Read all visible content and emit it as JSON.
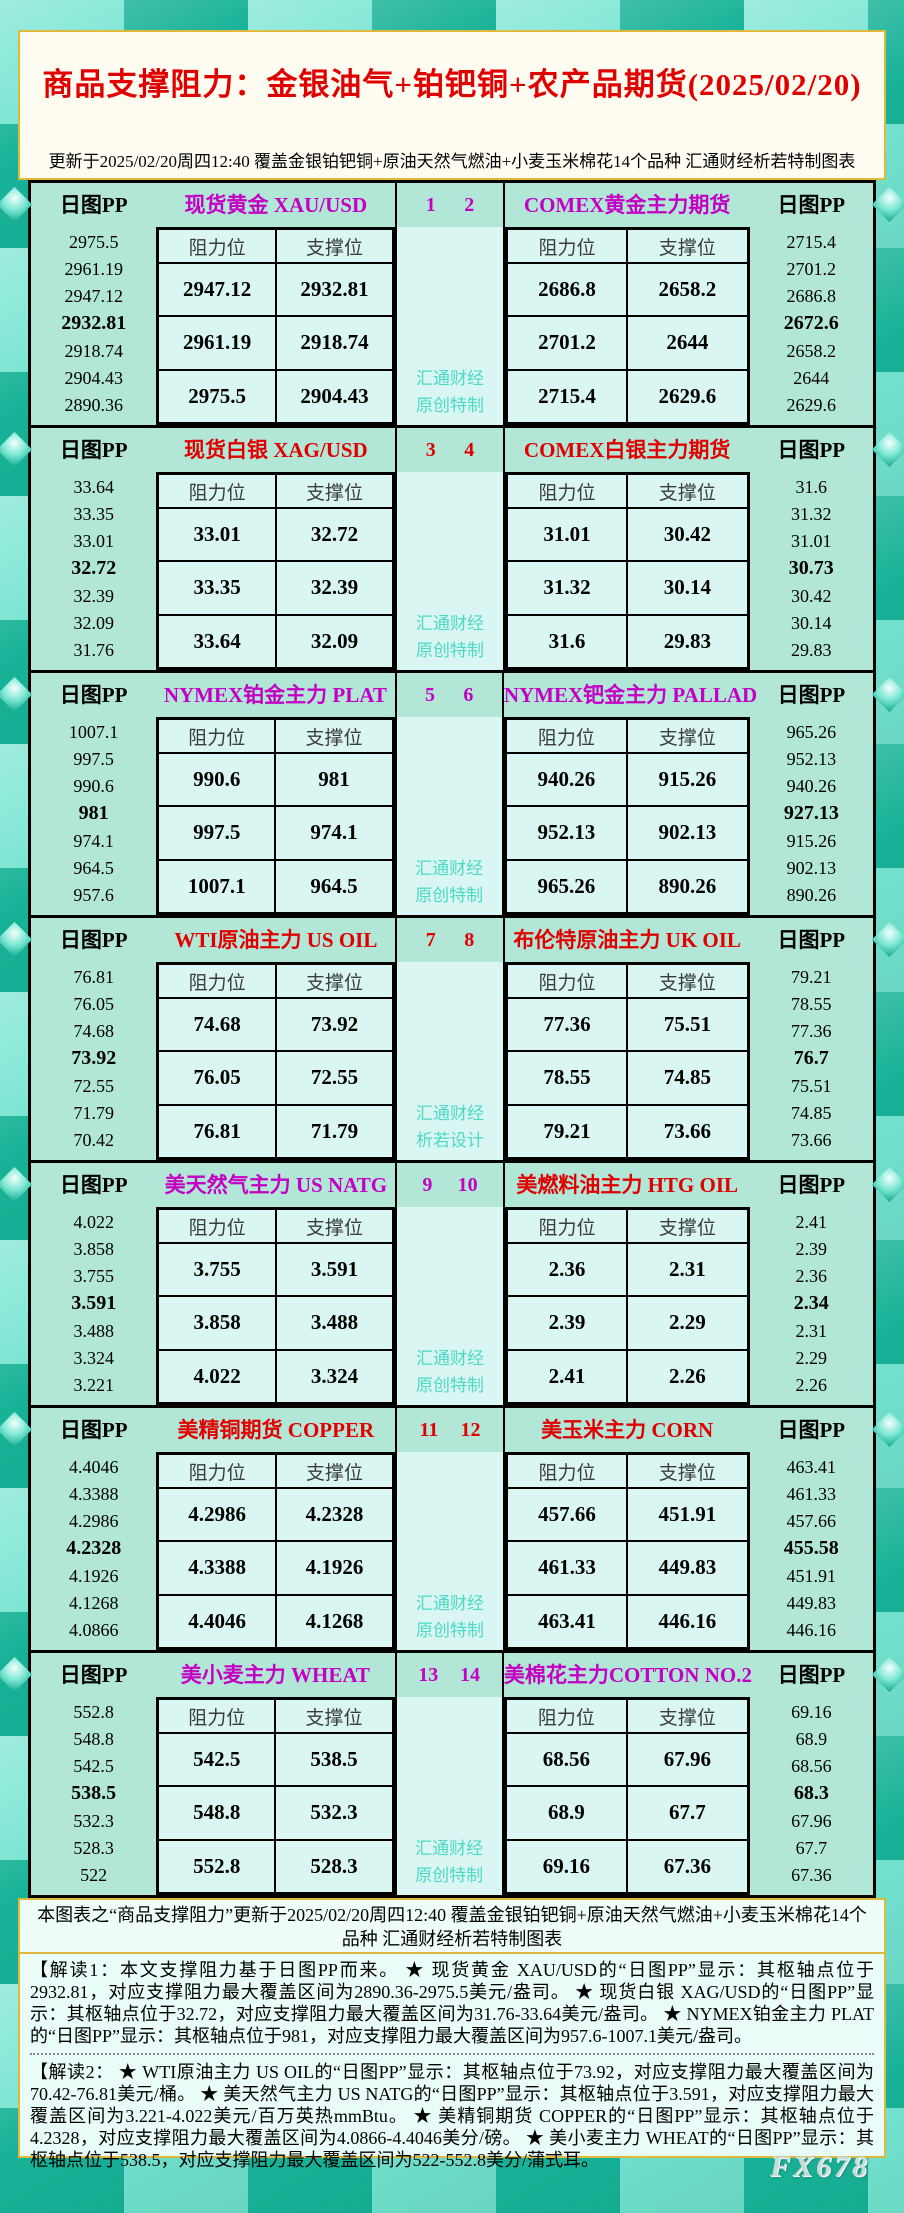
{
  "header": {
    "title": "商品支撑阻力：金银油气+铂钯铜+农产品期货(2025/02/20)",
    "update": "更新于2025/02/20周四12:40  覆盖金银铂钯铜+原油天然气燃油+小麦玉米棉花14个品种  汇通财经析若特制图表"
  },
  "labels": {
    "pp": "日图PP",
    "resistance": "阻力位",
    "support": "支撑位"
  },
  "colors": {
    "magenta": "#c400c4",
    "red": "#e00000",
    "watermark_teal": "#4cd9c5"
  },
  "blocks": [
    {
      "num_left": "1",
      "num_right": "2",
      "num_style": "color:#c400c4",
      "watermark_line1": "汇通财经",
      "watermark_line2": "原创特制",
      "left": {
        "title": "现货黄金 XAU/USD",
        "title_style": "color:#c400c4",
        "pp": [
          "2975.5",
          "2961.19",
          "2947.12",
          "2932.81",
          "2918.74",
          "2904.43",
          "2890.36"
        ],
        "rows": [
          [
            "2947.12",
            "2932.81"
          ],
          [
            "2961.19",
            "2918.74"
          ],
          [
            "2975.5",
            "2904.43"
          ]
        ]
      },
      "right": {
        "title": "COMEX黄金主力期货",
        "title_style": "color:#c400c4",
        "pp": [
          "2715.4",
          "2701.2",
          "2686.8",
          "2672.6",
          "2658.2",
          "2644",
          "2629.6"
        ],
        "rows": [
          [
            "2686.8",
            "2658.2"
          ],
          [
            "2701.2",
            "2644"
          ],
          [
            "2715.4",
            "2629.6"
          ]
        ]
      }
    },
    {
      "num_left": "3",
      "num_right": "4",
      "num_style": "color:#e00000",
      "watermark_line1": "汇通财经",
      "watermark_line2": "原创特制",
      "left": {
        "title": "现货白银 XAG/USD",
        "title_style": "color:#e00000",
        "pp": [
          "33.64",
          "33.35",
          "33.01",
          "32.72",
          "32.39",
          "32.09",
          "31.76"
        ],
        "rows": [
          [
            "33.01",
            "32.72"
          ],
          [
            "33.35",
            "32.39"
          ],
          [
            "33.64",
            "32.09"
          ]
        ]
      },
      "right": {
        "title": "COMEX白银主力期货",
        "title_style": "color:#e00000",
        "pp": [
          "31.6",
          "31.32",
          "31.01",
          "30.73",
          "30.42",
          "30.14",
          "29.83"
        ],
        "rows": [
          [
            "31.01",
            "30.42"
          ],
          [
            "31.32",
            "30.14"
          ],
          [
            "31.6",
            "29.83"
          ]
        ]
      }
    },
    {
      "num_left": "5",
      "num_right": "6",
      "num_style": "color:#c400c4",
      "watermark_line1": "汇通财经",
      "watermark_line2": "原创特制",
      "left": {
        "title": "NYMEX铂金主力 PLAT",
        "title_style": "color:#c400c4",
        "pp": [
          "1007.1",
          "997.5",
          "990.6",
          "981",
          "974.1",
          "964.5",
          "957.6"
        ],
        "rows": [
          [
            "990.6",
            "981"
          ],
          [
            "997.5",
            "974.1"
          ],
          [
            "1007.1",
            "964.5"
          ]
        ]
      },
      "right": {
        "title": "NYMEX钯金主力 PALLAD",
        "title_style": "color:#c400c4",
        "pp": [
          "965.26",
          "952.13",
          "940.26",
          "927.13",
          "915.26",
          "902.13",
          "890.26"
        ],
        "rows": [
          [
            "940.26",
            "915.26"
          ],
          [
            "952.13",
            "902.13"
          ],
          [
            "965.26",
            "890.26"
          ]
        ]
      }
    },
    {
      "num_left": "7",
      "num_right": "8",
      "num_style": "color:#e00000",
      "watermark_line1": "汇通财经",
      "watermark_line2": "析若设计",
      "left": {
        "title": "WTI原油主力 US OIL",
        "title_style": "color:#e00000",
        "pp": [
          "76.81",
          "76.05",
          "74.68",
          "73.92",
          "72.55",
          "71.79",
          "70.42"
        ],
        "rows": [
          [
            "74.68",
            "73.92"
          ],
          [
            "76.05",
            "72.55"
          ],
          [
            "76.81",
            "71.79"
          ]
        ]
      },
      "right": {
        "title": "布伦特原油主力 UK OIL",
        "title_style": "color:#e00000",
        "pp": [
          "79.21",
          "78.55",
          "77.36",
          "76.7",
          "75.51",
          "74.85",
          "73.66"
        ],
        "rows": [
          [
            "77.36",
            "75.51"
          ],
          [
            "78.55",
            "74.85"
          ],
          [
            "79.21",
            "73.66"
          ]
        ]
      }
    },
    {
      "num_left": "9",
      "num_right": "10",
      "num_style": "color:#c400c4",
      "watermark_line1": "汇通财经",
      "watermark_line2": "原创特制",
      "left": {
        "title": "美天然气主力 US NATG",
        "title_style": "color:#c400c4",
        "pp": [
          "4.022",
          "3.858",
          "3.755",
          "3.591",
          "3.488",
          "3.324",
          "3.221"
        ],
        "rows": [
          [
            "3.755",
            "3.591"
          ],
          [
            "3.858",
            "3.488"
          ],
          [
            "4.022",
            "3.324"
          ]
        ]
      },
      "right": {
        "title": "美燃料油主力 HTG OIL",
        "title_style": "color:#e00000",
        "pp": [
          "2.41",
          "2.39",
          "2.36",
          "2.34",
          "2.31",
          "2.29",
          "2.26"
        ],
        "rows": [
          [
            "2.36",
            "2.31"
          ],
          [
            "2.39",
            "2.29"
          ],
          [
            "2.41",
            "2.26"
          ]
        ]
      }
    },
    {
      "num_left": "11",
      "num_right": "12",
      "num_style": "color:#e00000",
      "watermark_line1": "汇通财经",
      "watermark_line2": "原创特制",
      "left": {
        "title": "美精铜期货 COPPER",
        "title_style": "color:#e00000",
        "pp": [
          "4.4046",
          "4.3388",
          "4.2986",
          "4.2328",
          "4.1926",
          "4.1268",
          "4.0866"
        ],
        "rows": [
          [
            "4.2986",
            "4.2328"
          ],
          [
            "4.3388",
            "4.1926"
          ],
          [
            "4.4046",
            "4.1268"
          ]
        ]
      },
      "right": {
        "title": "美玉米主力 CORN",
        "title_style": "color:#e00000",
        "pp": [
          "463.41",
          "461.33",
          "457.66",
          "455.58",
          "451.91",
          "449.83",
          "446.16"
        ],
        "rows": [
          [
            "457.66",
            "451.91"
          ],
          [
            "461.33",
            "449.83"
          ],
          [
            "463.41",
            "446.16"
          ]
        ]
      }
    },
    {
      "num_left": "13",
      "num_right": "14",
      "num_style": "color:#c400c4",
      "watermark_line1": "汇通财经",
      "watermark_line2": "原创特制",
      "left": {
        "title": "美小麦主力 WHEAT",
        "title_style": "color:#c400c4",
        "pp": [
          "552.8",
          "548.8",
          "542.5",
          "538.5",
          "532.3",
          "528.3",
          "522"
        ],
        "rows": [
          [
            "542.5",
            "538.5"
          ],
          [
            "548.8",
            "532.3"
          ],
          [
            "552.8",
            "528.3"
          ]
        ]
      },
      "right": {
        "title": "美棉花主力COTTON NO.2",
        "title_style": "color:#c400c4",
        "pp": [
          "69.16",
          "68.9",
          "68.56",
          "68.3",
          "67.96",
          "67.7",
          "67.36"
        ],
        "rows": [
          [
            "68.56",
            "67.96"
          ],
          [
            "68.9",
            "67.7"
          ],
          [
            "69.16",
            "67.36"
          ]
        ]
      }
    }
  ],
  "footer": {
    "summary": "本图表之“商品支撑阻力”更新于2025/02/20周四12:40  覆盖金银铂钯铜+原油天然气燃油+小麦玉米棉花14个品种  汇通财经析若特制图表",
    "note1": "【解读1：本文支撑阻力基于日图PP而来。 ★ 现货黄金 XAU/USD的“日图PP”显示：其枢轴点位于2932.81，对应支撑阻力最大覆盖区间为2890.36-2975.5美元/盎司。 ★ 现货白银 XAG/USD的“日图PP”显示：其枢轴点位于32.72，对应支撑阻力最大覆盖区间为31.76-33.64美元/盎司。 ★ NYMEX铂金主力 PLAT的“日图PP”显示：其枢轴点位于981，对应支撑阻力最大覆盖区间为957.6-1007.1美元/盎司。",
    "note2": "【解读2： ★ WTI原油主力 US OIL的“日图PP”显示：其枢轴点位于73.92，对应支撑阻力最大覆盖区间为70.42-76.81美元/桶。 ★ 美天然气主力 US NATG的“日图PP”显示：其枢轴点位于3.591，对应支撑阻力最大覆盖区间为3.221-4.022美元/百万英热mmBtu。 ★ 美精铜期货 COPPER的“日图PP”显示：其枢轴点位于4.2328，对应支撑阻力最大覆盖区间为4.0866-4.4046美分/磅。 ★ 美小麦主力 WHEAT的“日图PP”显示：其枢轴点位于538.5，对应支撑阻力最大覆盖区间为522-552.8美分/蒲式耳。",
    "brand": "FX678"
  },
  "chart_data": {
    "type": "table",
    "title": "商品支撑阻力：金银油气+铂钯铜+农产品期货(2025/02/20)",
    "updated": "2025/02/20周四12:40",
    "columns": [
      "阻力位",
      "支撑位"
    ],
    "instruments": [
      {
        "chart_no": 1,
        "name": "现货黄金 XAU/USD",
        "pivot": 2932.81,
        "resistance": [
          2947.12,
          2961.19,
          2975.5
        ],
        "support": [
          2932.81,
          2918.74,
          2904.43
        ],
        "pp_levels": [
          2975.5,
          2961.19,
          2947.12,
          2932.81,
          2918.74,
          2904.43,
          2890.36
        ]
      },
      {
        "chart_no": 2,
        "name": "COMEX黄金主力期货",
        "pivot": 2672.6,
        "resistance": [
          2686.8,
          2701.2,
          2715.4
        ],
        "support": [
          2658.2,
          2644,
          2629.6
        ],
        "pp_levels": [
          2715.4,
          2701.2,
          2686.8,
          2672.6,
          2658.2,
          2644,
          2629.6
        ]
      },
      {
        "chart_no": 3,
        "name": "现货白银 XAG/USD",
        "pivot": 32.72,
        "resistance": [
          33.01,
          33.35,
          33.64
        ],
        "support": [
          32.72,
          32.39,
          32.09
        ],
        "pp_levels": [
          33.64,
          33.35,
          33.01,
          32.72,
          32.39,
          32.09,
          31.76
        ]
      },
      {
        "chart_no": 4,
        "name": "COMEX白银主力期货",
        "pivot": 30.73,
        "resistance": [
          31.01,
          31.32,
          31.6
        ],
        "support": [
          30.42,
          30.14,
          29.83
        ],
        "pp_levels": [
          31.6,
          31.32,
          31.01,
          30.73,
          30.42,
          30.14,
          29.83
        ]
      },
      {
        "chart_no": 5,
        "name": "NYMEX铂金主力 PLAT",
        "pivot": 981,
        "resistance": [
          990.6,
          997.5,
          1007.1
        ],
        "support": [
          981,
          974.1,
          964.5
        ],
        "pp_levels": [
          1007.1,
          997.5,
          990.6,
          981,
          974.1,
          964.5,
          957.6
        ]
      },
      {
        "chart_no": 6,
        "name": "NYMEX钯金主力 PALLAD",
        "pivot": 927.13,
        "resistance": [
          940.26,
          952.13,
          965.26
        ],
        "support": [
          915.26,
          902.13,
          890.26
        ],
        "pp_levels": [
          965.26,
          952.13,
          940.26,
          927.13,
          915.26,
          902.13,
          890.26
        ]
      },
      {
        "chart_no": 7,
        "name": "WTI原油主力 US OIL",
        "pivot": 73.92,
        "resistance": [
          74.68,
          76.05,
          76.81
        ],
        "support": [
          73.92,
          72.55,
          71.79
        ],
        "pp_levels": [
          76.81,
          76.05,
          74.68,
          73.92,
          72.55,
          71.79,
          70.42
        ]
      },
      {
        "chart_no": 8,
        "name": "布伦特原油主力 UK OIL",
        "pivot": 76.7,
        "resistance": [
          77.36,
          78.55,
          79.21
        ],
        "support": [
          75.51,
          74.85,
          73.66
        ],
        "pp_levels": [
          79.21,
          78.55,
          77.36,
          76.7,
          75.51,
          74.85,
          73.66
        ]
      },
      {
        "chart_no": 9,
        "name": "美天然气主力 US NATG",
        "pivot": 3.591,
        "resistance": [
          3.755,
          3.858,
          4.022
        ],
        "support": [
          3.591,
          3.488,
          3.324
        ],
        "pp_levels": [
          4.022,
          3.858,
          3.755,
          3.591,
          3.488,
          3.324,
          3.221
        ]
      },
      {
        "chart_no": 10,
        "name": "美燃料油主力 HTG OIL",
        "pivot": 2.34,
        "resistance": [
          2.36,
          2.39,
          2.41
        ],
        "support": [
          2.31,
          2.29,
          2.26
        ],
        "pp_levels": [
          2.41,
          2.39,
          2.36,
          2.34,
          2.31,
          2.29,
          2.26
        ]
      },
      {
        "chart_no": 11,
        "name": "美精铜期货 COPPER",
        "pivot": 4.2328,
        "resistance": [
          4.2986,
          4.3388,
          4.4046
        ],
        "support": [
          4.2328,
          4.1926,
          4.1268
        ],
        "pp_levels": [
          4.4046,
          4.3388,
          4.2986,
          4.2328,
          4.1926,
          4.1268,
          4.0866
        ]
      },
      {
        "chart_no": 12,
        "name": "美玉米主力 CORN",
        "pivot": 455.58,
        "resistance": [
          457.66,
          461.33,
          463.41
        ],
        "support": [
          451.91,
          449.83,
          446.16
        ],
        "pp_levels": [
          463.41,
          461.33,
          457.66,
          455.58,
          451.91,
          449.83,
          446.16
        ]
      },
      {
        "chart_no": 13,
        "name": "美小麦主力 WHEAT",
        "pivot": 538.5,
        "resistance": [
          542.5,
          548.8,
          552.8
        ],
        "support": [
          538.5,
          532.3,
          528.3
        ],
        "pp_levels": [
          552.8,
          548.8,
          542.5,
          538.5,
          532.3,
          528.3,
          522
        ]
      },
      {
        "chart_no": 14,
        "name": "美棉花主力COTTON NO.2",
        "pivot": 68.3,
        "resistance": [
          68.56,
          68.9,
          69.16
        ],
        "support": [
          67.96,
          67.7,
          67.36
        ],
        "pp_levels": [
          69.16,
          68.9,
          68.56,
          68.3,
          67.96,
          67.7,
          67.36
        ]
      }
    ]
  }
}
